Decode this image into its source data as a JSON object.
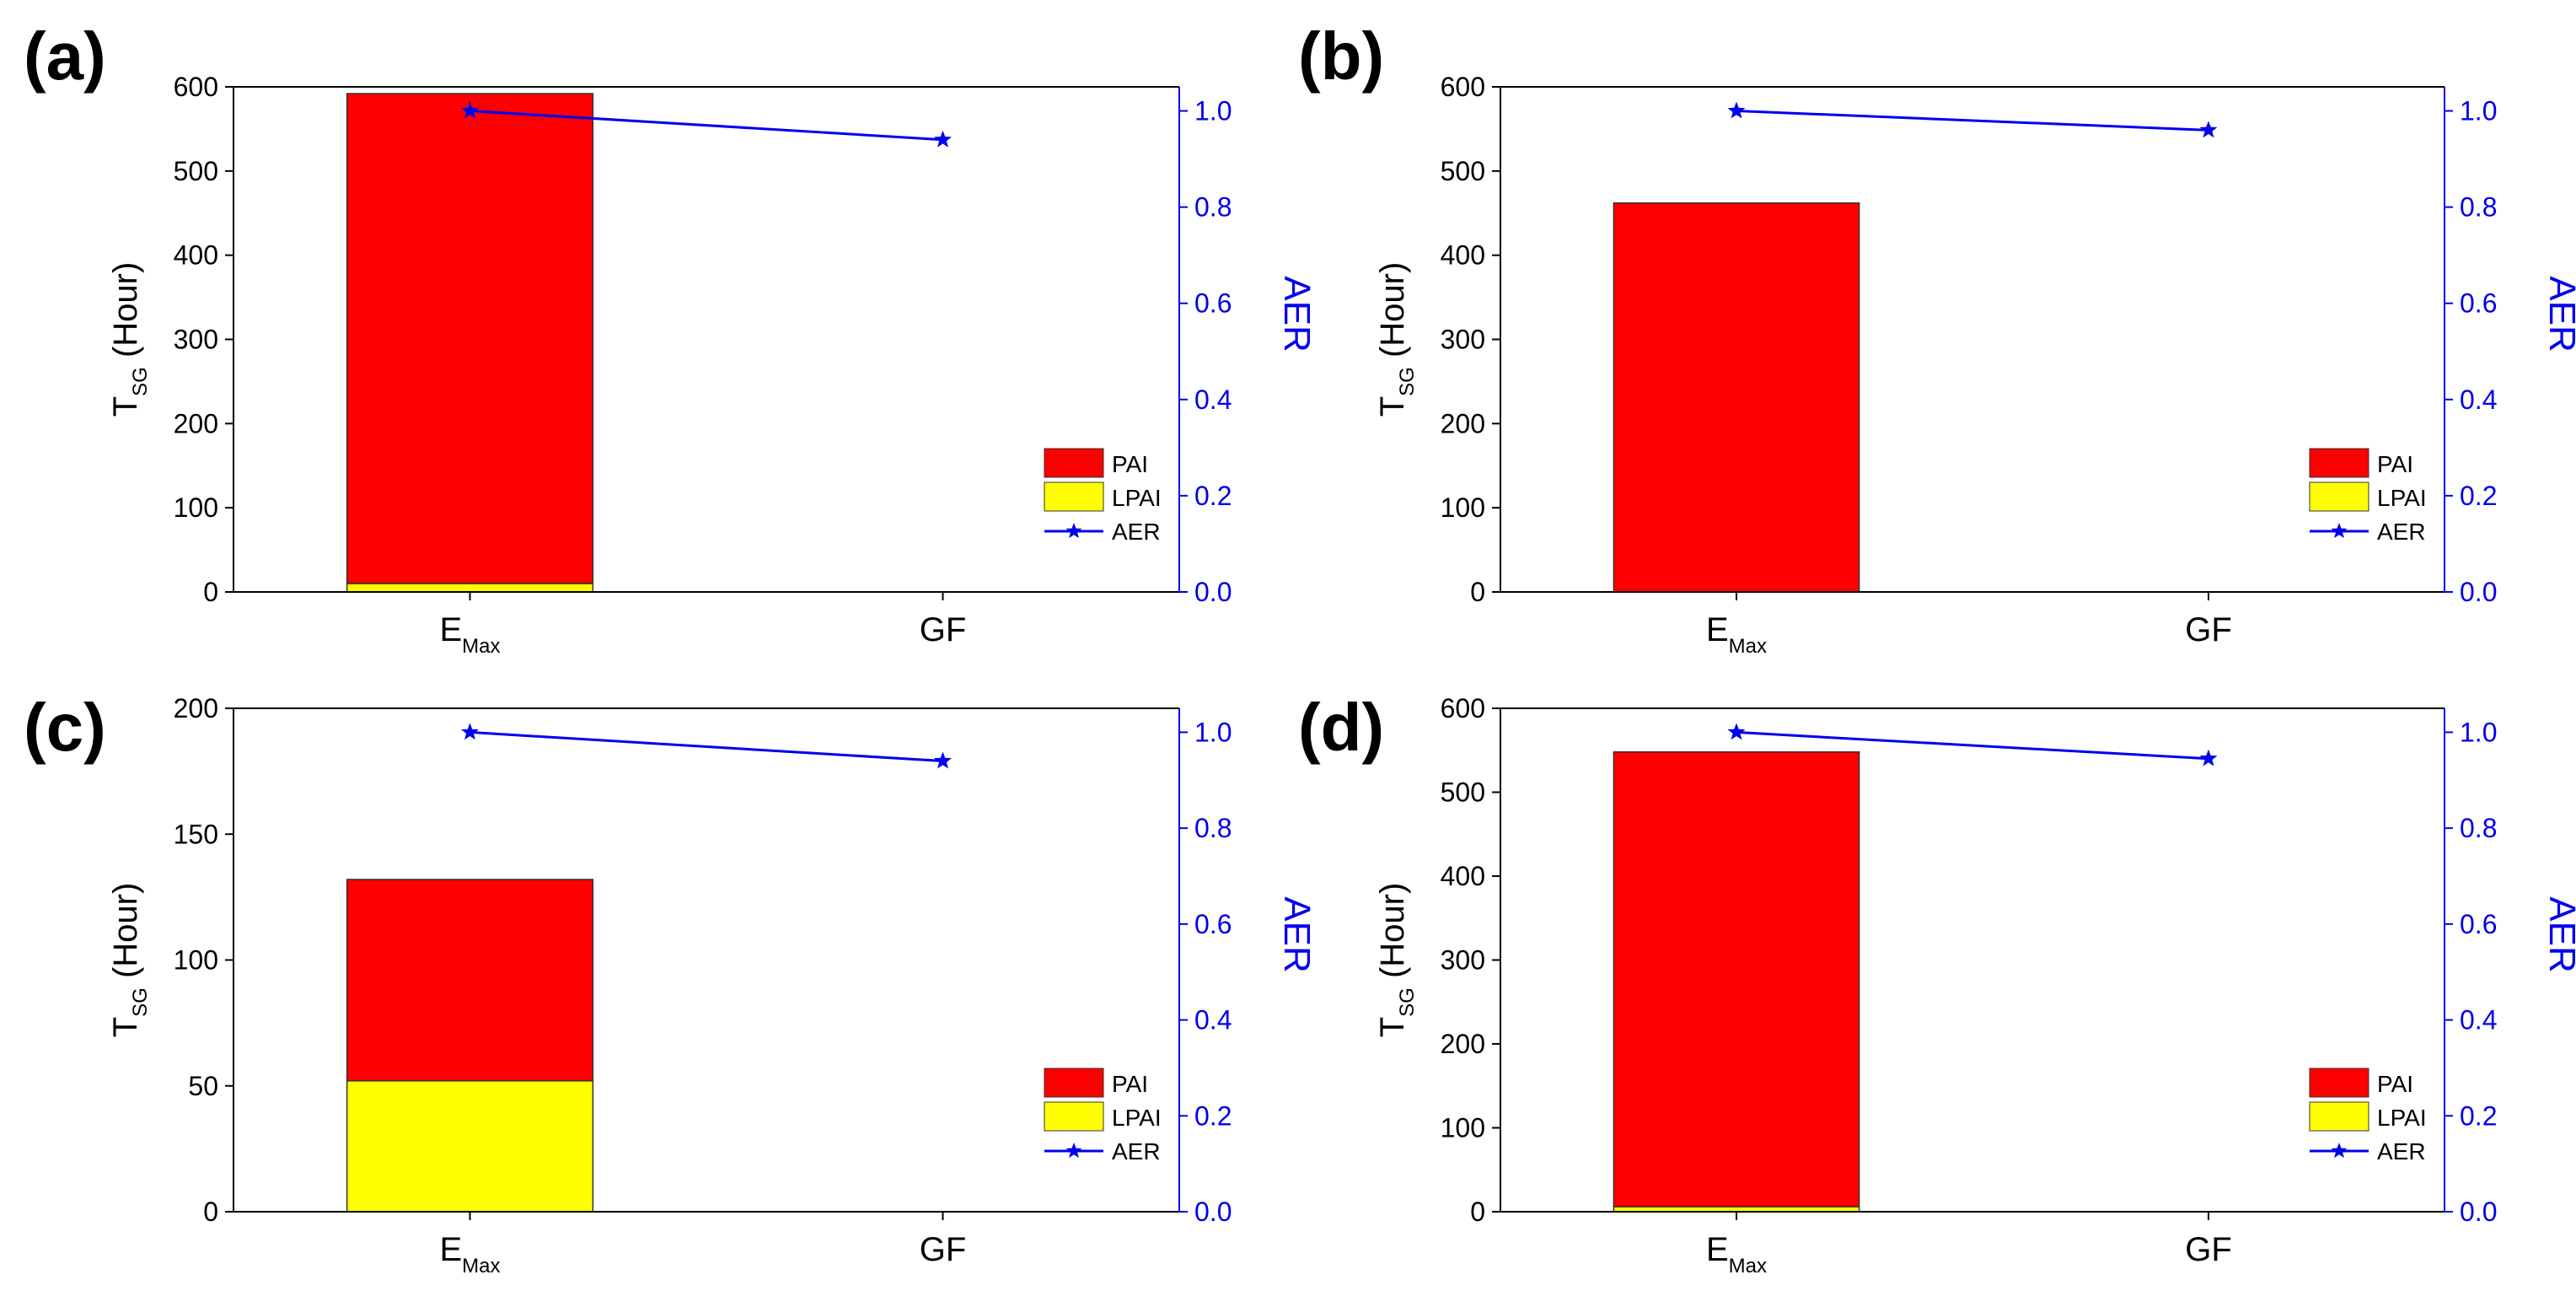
{
  "colors": {
    "pai": "#ff0000",
    "lpai": "#ffff00",
    "aer": "#0000ee",
    "axis": "#000000"
  },
  "legend": [
    "PAI",
    "LPAI",
    "AER"
  ],
  "left_axis_label": {
    "main": "T",
    "sub": "SG",
    "suffix": " (Hour)"
  },
  "right_axis_label": "AER",
  "chart_data": [
    {
      "type": "bar",
      "panel": "(a)",
      "categories": [
        {
          "main": "E",
          "sub": "Max"
        },
        {
          "main": "GF",
          "sub": ""
        }
      ],
      "series": [
        {
          "name": "LPAI",
          "values": [
            10,
            0
          ]
        },
        {
          "name": "PAI",
          "values": [
            582,
            0
          ]
        },
        {
          "name": "AER",
          "axis": "right",
          "values": [
            1.0,
            0.94
          ]
        }
      ],
      "ylim": [
        0,
        600
      ],
      "yticks": [
        "0",
        "100",
        "200",
        "300",
        "400",
        "500",
        "600"
      ],
      "y2lim": [
        0,
        1.05
      ],
      "y2ticks": [
        "0.0",
        "0.2",
        "0.4",
        "0.6",
        "0.8",
        "1.0"
      ]
    },
    {
      "type": "bar",
      "panel": "(b)",
      "categories": [
        {
          "main": "E",
          "sub": "Max"
        },
        {
          "main": "GF",
          "sub": ""
        }
      ],
      "series": [
        {
          "name": "LPAI",
          "values": [
            0,
            0
          ]
        },
        {
          "name": "PAI",
          "values": [
            462,
            0
          ]
        },
        {
          "name": "AER",
          "axis": "right",
          "values": [
            1.0,
            0.96
          ]
        }
      ],
      "ylim": [
        0,
        600
      ],
      "yticks": [
        "0",
        "100",
        "200",
        "300",
        "400",
        "500",
        "600"
      ],
      "y2lim": [
        0,
        1.05
      ],
      "y2ticks": [
        "0.0",
        "0.2",
        "0.4",
        "0.6",
        "0.8",
        "1.0"
      ]
    },
    {
      "type": "bar",
      "panel": "(c)",
      "categories": [
        {
          "main": "E",
          "sub": "Max"
        },
        {
          "main": "GF",
          "sub": ""
        }
      ],
      "series": [
        {
          "name": "LPAI",
          "values": [
            52,
            0
          ]
        },
        {
          "name": "PAI",
          "values": [
            80,
            0
          ]
        },
        {
          "name": "AER",
          "axis": "right",
          "values": [
            1.0,
            0.94
          ]
        }
      ],
      "ylim": [
        0,
        200
      ],
      "yticks": [
        "0",
        "50",
        "100",
        "150",
        "200"
      ],
      "y2lim": [
        0,
        1.05
      ],
      "y2ticks": [
        "0.0",
        "0.2",
        "0.4",
        "0.6",
        "0.8",
        "1.0"
      ]
    },
    {
      "type": "bar",
      "panel": "(d)",
      "categories": [
        {
          "main": "E",
          "sub": "Max"
        },
        {
          "main": "GF",
          "sub": ""
        }
      ],
      "series": [
        {
          "name": "LPAI",
          "values": [
            6,
            0
          ]
        },
        {
          "name": "PAI",
          "values": [
            542,
            0
          ]
        },
        {
          "name": "AER",
          "axis": "right",
          "values": [
            1.0,
            0.945
          ]
        }
      ],
      "ylim": [
        0,
        600
      ],
      "yticks": [
        "0",
        "100",
        "200",
        "300",
        "400",
        "500",
        "600"
      ],
      "y2lim": [
        0,
        1.05
      ],
      "y2ticks": [
        "0.0",
        "0.2",
        "0.4",
        "0.6",
        "0.8",
        "1.0"
      ]
    }
  ]
}
